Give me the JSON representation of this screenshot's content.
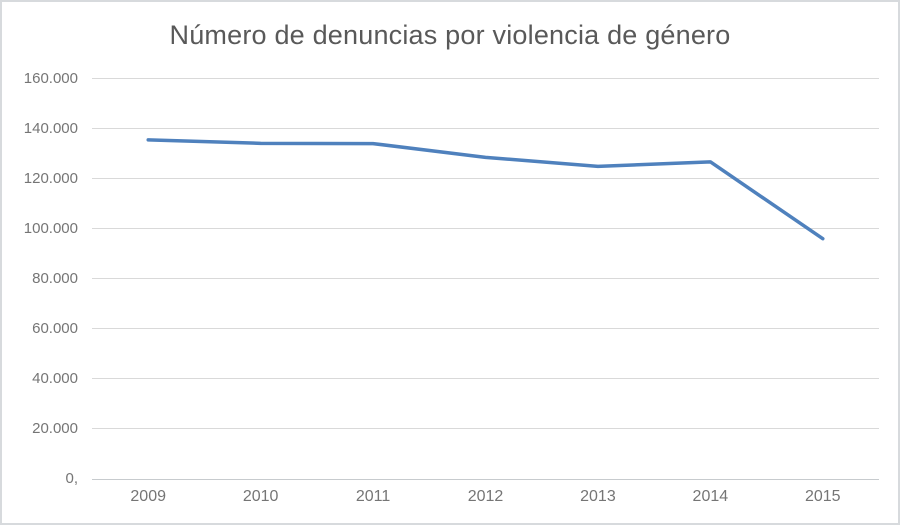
{
  "window": {
    "background": "#ffffff",
    "border_color": "#d7dadd"
  },
  "chart_data": {
    "type": "line",
    "title": "Número de denuncias por violencia de género",
    "categories": [
      "2009",
      "2010",
      "2011",
      "2012",
      "2013",
      "2014",
      "2015"
    ],
    "values": [
      135500,
      134100,
      134000,
      128500,
      124900,
      126700,
      96000
    ],
    "xlabel": "",
    "ylabel": "",
    "ylim": [
      0,
      160000
    ],
    "ytick_interval": 20000,
    "ytick_labels": [
      "0,",
      "20.000",
      "40.000",
      "60.000",
      "80.000",
      "100.000",
      "120.000",
      "140.000",
      "160.000"
    ],
    "grid": true,
    "legend": false,
    "line_color": "#4f81bd",
    "gridline_color": "#d9d9d9",
    "axis_line_color": "#c7cbce",
    "title_color": "#595959",
    "tick_label_color": "#757575"
  }
}
